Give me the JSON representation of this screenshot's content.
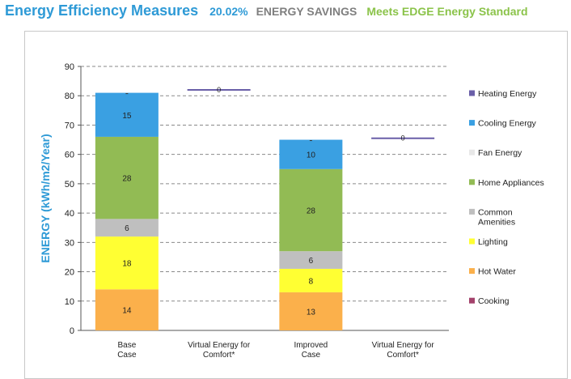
{
  "header": {
    "title": "Energy Efficiency Measures",
    "savings_percent": "20.02%",
    "savings_label": "ENERGY SAVINGS",
    "standard": "Meets EDGE Energy Standard"
  },
  "chart_data": {
    "type": "bar",
    "stacked": true,
    "ylabel": "ENERGY (kWh/m2/Year)",
    "ylim": [
      0,
      90
    ],
    "yticks": [
      0,
      10,
      20,
      30,
      40,
      50,
      60,
      70,
      80,
      90
    ],
    "grid": true,
    "legend_position": "right",
    "categories": [
      "Base Case",
      "Virtual Energy for Comfort*",
      "Improved Case",
      "Virtual Energy for Comfort*"
    ],
    "category_lines": [
      [
        "Base",
        "Case"
      ],
      [
        "Virtual Energy for",
        "Comfort*"
      ],
      [
        "Improved",
        "Case"
      ],
      [
        "Virtual Energy for",
        "Comfort*"
      ]
    ],
    "series": [
      {
        "name": "Hot Water",
        "color": "#fbb04b",
        "values": [
          14,
          0,
          13,
          0
        ]
      },
      {
        "name": "Lighting",
        "color": "#ffff33",
        "values": [
          18,
          0,
          8,
          0
        ]
      },
      {
        "name": "Common Amenities",
        "color": "#bfbfbf",
        "values": [
          6,
          0,
          6,
          0
        ]
      },
      {
        "name": "Home Appliances",
        "color": "#92bb54",
        "values": [
          28,
          0,
          28,
          0
        ]
      },
      {
        "name": "Fan Energy",
        "color": "#e8e8e8",
        "values": [
          0,
          0,
          0,
          0
        ]
      },
      {
        "name": "Cooling Energy",
        "color": "#3aa0e2",
        "values": [
          15,
          0,
          10,
          0
        ]
      },
      {
        "name": "Heating Energy",
        "color": "#6a5fa8",
        "values": [
          0,
          0,
          0,
          0
        ]
      },
      {
        "name": "Cooking",
        "color": "#a3426b",
        "values": [
          0,
          0,
          0,
          0
        ]
      }
    ],
    "segment_labels": [
      [
        "14",
        "18",
        "6",
        "28",
        "",
        "15",
        "",
        ""
      ],
      [
        "",
        "",
        "",
        "",
        "",
        "",
        "",
        ""
      ],
      [
        "13",
        "8",
        "6",
        "28",
        "",
        "10",
        "",
        ""
      ],
      [
        "",
        "",
        "",
        "",
        "",
        "",
        "",
        ""
      ]
    ],
    "virtual_lines": [
      {
        "category_index": 1,
        "value": 82,
        "color": "#6a5fa8",
        "label": "0"
      },
      {
        "category_index": 3,
        "value": 65.5,
        "color": "#6a5fa8",
        "label": "0"
      }
    ],
    "legend": [
      {
        "name": "Heating Energy",
        "color": "#6a5fa8"
      },
      {
        "name": "Cooling Energy",
        "color": "#3aa0e2"
      },
      {
        "name": "Fan Energy",
        "color": "#e8e8e8"
      },
      {
        "name": "Home Appliances",
        "color": "#92bb54"
      },
      {
        "name": "Common Amenities",
        "color": "#bfbfbf",
        "lines": [
          "Common",
          "Amenities"
        ]
      },
      {
        "name": "Lighting",
        "color": "#ffff33"
      },
      {
        "name": "Hot Water",
        "color": "#fbb04b"
      },
      {
        "name": "Cooking",
        "color": "#a3426b"
      }
    ]
  }
}
